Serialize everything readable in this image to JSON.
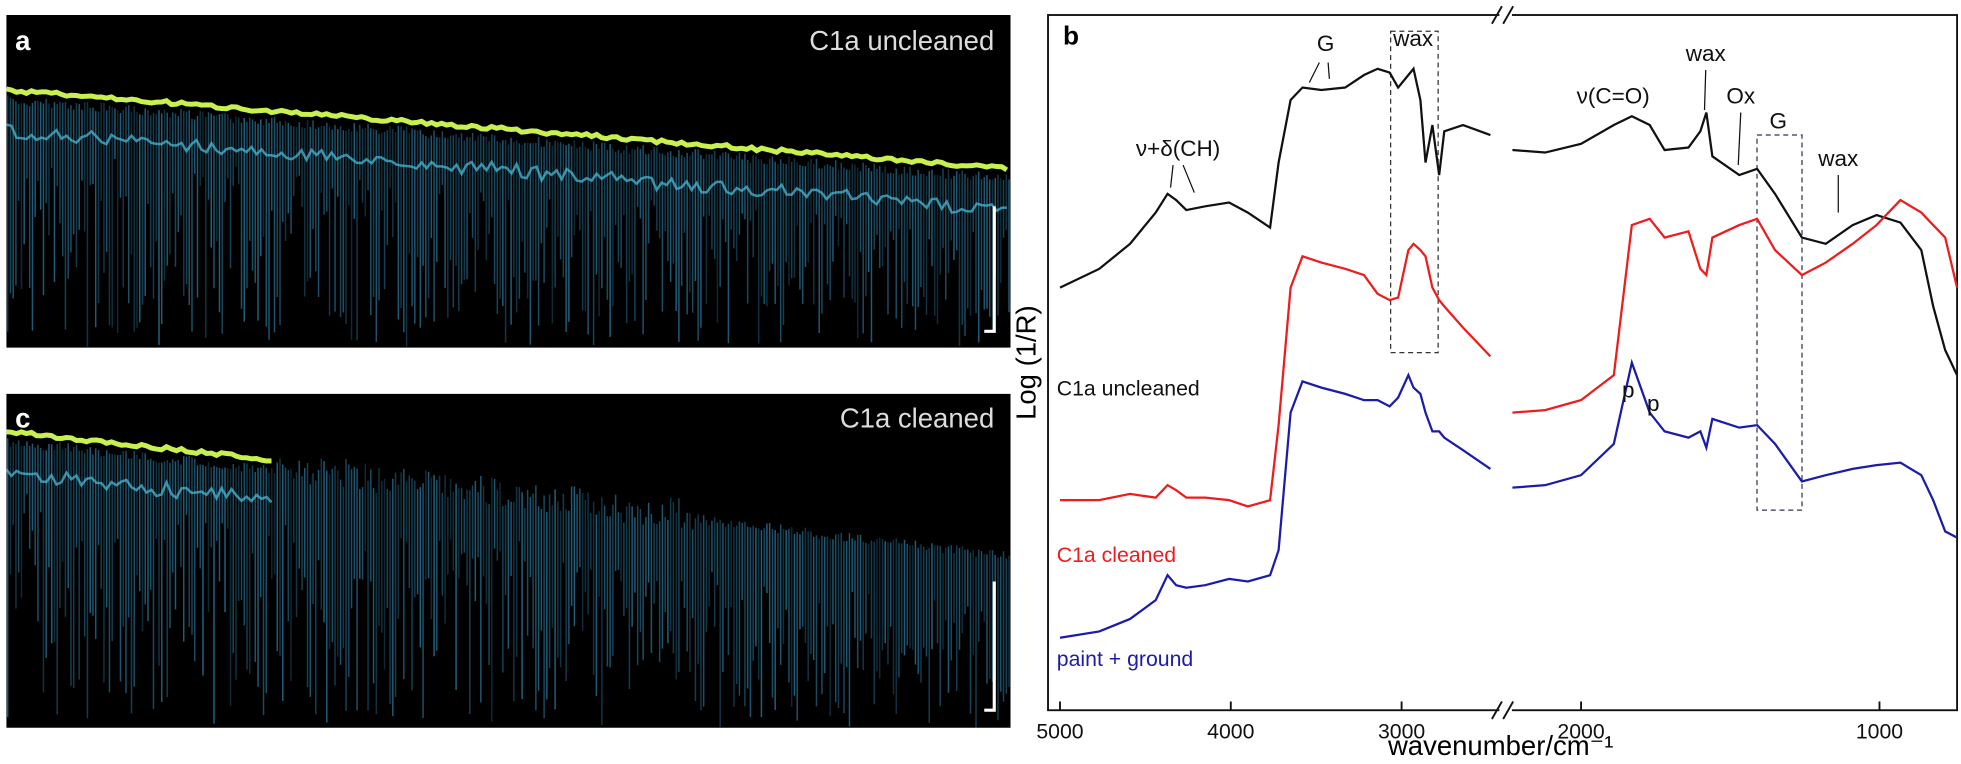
{
  "panels": [
    {
      "label": "a",
      "title": "C1a uncleaned"
    },
    {
      "label": "c",
      "title": "C1a cleaned"
    }
  ],
  "chart_data": {
    "type": "line",
    "panel_label": "b",
    "xlabel": "wavenumber/cm⁻¹",
    "ylabel": "Log (1/R)",
    "xlim": [
      5070,
      740
    ],
    "xbreak": [
      2420,
      2240
    ],
    "ylim": [
      0,
      556
    ],
    "xticks": [
      5000,
      4000,
      3000,
      2000,
      1000
    ],
    "x": [
      5000,
      4770,
      4590,
      4440,
      4370,
      4320,
      4260,
      4150,
      4010,
      3900,
      3770,
      3720,
      3650,
      3580,
      3470,
      3330,
      3220,
      3140,
      3070,
      3020,
      2960,
      2930,
      2890,
      2860,
      2820,
      2780,
      2750,
      2640,
      2480,
      2350,
      2230,
      2120,
      2000,
      1890,
      1830,
      1770,
      1720,
      1640,
      1600,
      1580,
      1560,
      1470,
      1410,
      1350,
      1260,
      1180,
      1090,
      1010,
      930,
      860,
      820,
      780,
      740
    ],
    "series": [
      {
        "name": "C1a uncleaned",
        "color": "#111111",
        "values": [
          338,
          353,
          373,
          398,
          413,
          408,
          400,
          403,
          406,
          398,
          386,
          438,
          488,
          498,
          496,
          498,
          508,
          513,
          510,
          498,
          508,
          513,
          488,
          438,
          468,
          428,
          463,
          468,
          460,
          null,
          448,
          446,
          453,
          468,
          475,
          468,
          448,
          450,
          463,
          478,
          443,
          428,
          433,
          413,
          378,
          373,
          388,
          396,
          390,
          368,
          323,
          288,
          268
        ]
      },
      {
        "name": "C1a cleaned",
        "color": "#ee1c1c",
        "values": [
          168,
          168,
          173,
          170,
          180,
          176,
          170,
          170,
          168,
          163,
          168,
          228,
          338,
          363,
          358,
          353,
          348,
          333,
          328,
          330,
          368,
          373,
          368,
          363,
          338,
          328,
          323,
          306,
          283,
          null,
          238,
          240,
          248,
          268,
          388,
          393,
          378,
          383,
          353,
          348,
          378,
          388,
          393,
          368,
          348,
          358,
          373,
          388,
          408,
          398,
          388,
          378,
          338
        ]
      },
      {
        "name": "paint + ground",
        "color": "#1c1ca8",
        "values": [
          58,
          63,
          73,
          88,
          108,
          100,
          98,
          100,
          105,
          103,
          108,
          128,
          238,
          263,
          258,
          253,
          248,
          248,
          243,
          250,
          268,
          258,
          253,
          238,
          223,
          223,
          218,
          208,
          193,
          null,
          178,
          180,
          188,
          213,
          278,
          238,
          223,
          218,
          223,
          210,
          233,
          226,
          228,
          213,
          183,
          188,
          193,
          196,
          198,
          188,
          168,
          143,
          138
        ]
      }
    ],
    "annotations": [
      "ν+δ(CH)",
      "G",
      "wax",
      "ν(C=O)",
      "wax",
      "Ox",
      "G",
      "wax",
      "p",
      "p"
    ]
  }
}
